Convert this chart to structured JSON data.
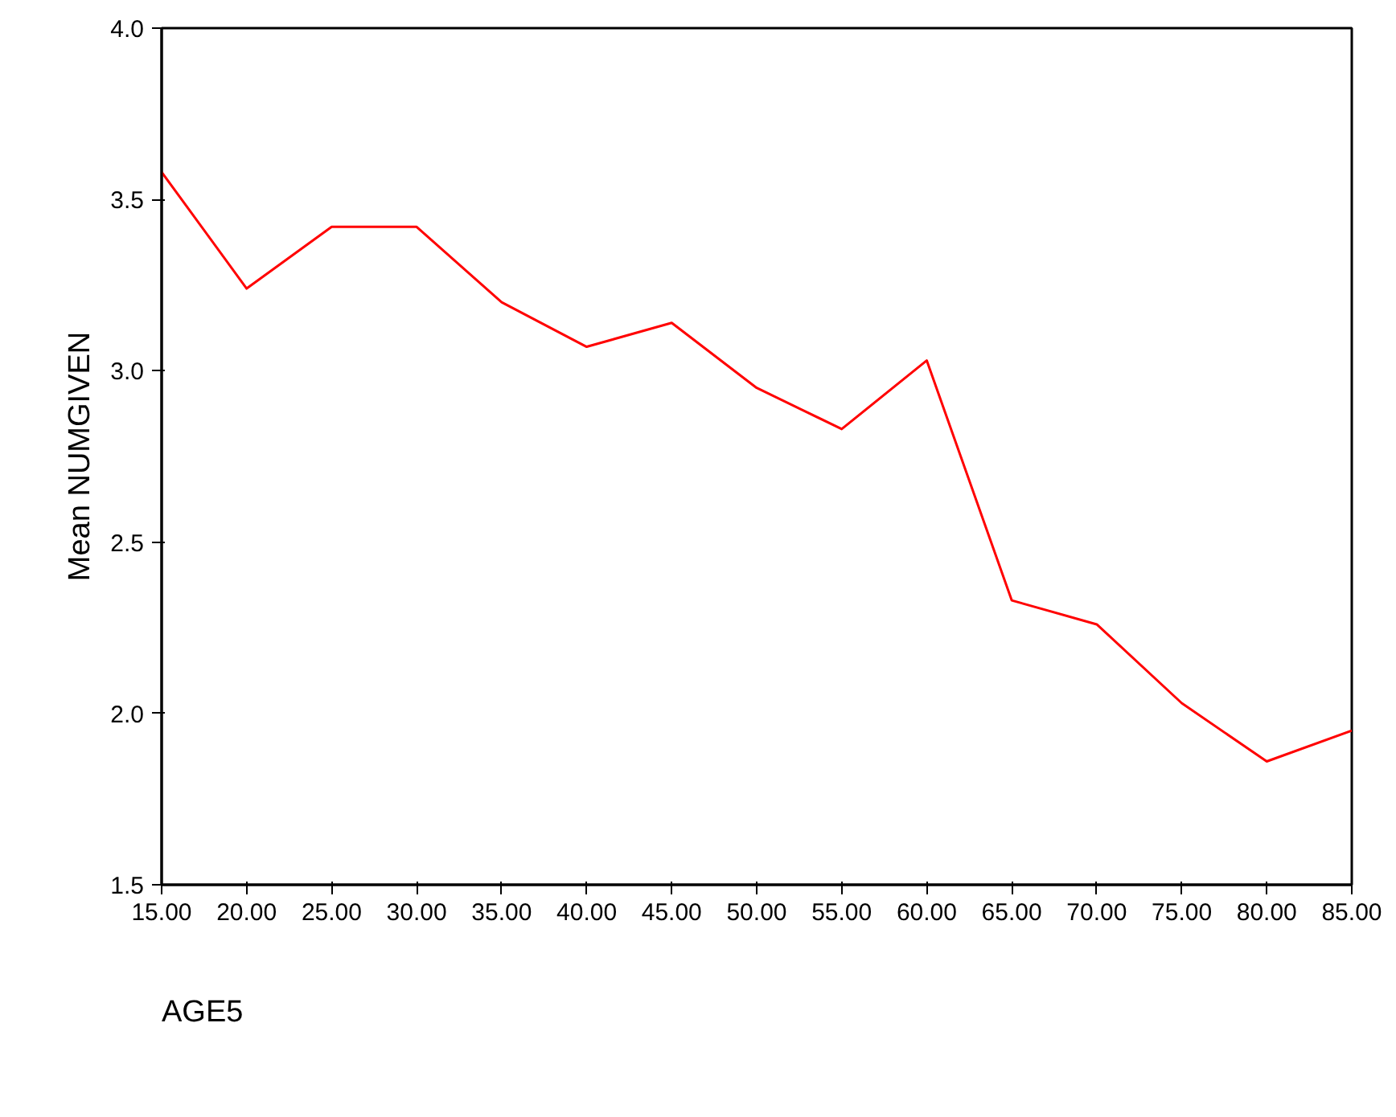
{
  "chart_data": {
    "type": "line",
    "xlabel": "AGE5",
    "ylabel": "Mean NUMGIVEN",
    "x": [
      15,
      20,
      25,
      30,
      35,
      40,
      45,
      50,
      55,
      60,
      65,
      70,
      75,
      80,
      85
    ],
    "series": [
      {
        "color": "#ff0000",
        "values": [
          3.58,
          3.24,
          3.42,
          3.42,
          3.2,
          3.07,
          3.14,
          2.95,
          2.83,
          3.03,
          2.33,
          2.26,
          2.03,
          1.86,
          1.95
        ]
      }
    ],
    "xlim": [
      15,
      85
    ],
    "xticks": [
      {
        "value": 15,
        "label": "15.00"
      },
      {
        "value": 20,
        "label": "20.00"
      },
      {
        "value": 25,
        "label": "25.00"
      },
      {
        "value": 30,
        "label": "30.00"
      },
      {
        "value": 35,
        "label": "35.00"
      },
      {
        "value": 40,
        "label": "40.00"
      },
      {
        "value": 45,
        "label": "45.00"
      },
      {
        "value": 50,
        "label": "50.00"
      },
      {
        "value": 55,
        "label": "55.00"
      },
      {
        "value": 60,
        "label": "60.00"
      },
      {
        "value": 65,
        "label": "65.00"
      },
      {
        "value": 70,
        "label": "70.00"
      },
      {
        "value": 75,
        "label": "75.00"
      },
      {
        "value": 80,
        "label": "80.00"
      },
      {
        "value": 85,
        "label": "85.00"
      }
    ],
    "ylim": [
      1.5,
      4.0
    ],
    "yticks": [
      1.5,
      {
        "value": 2.0,
        "label": "2.0"
      },
      2.5,
      {
        "value": 3.0,
        "label": "3.0"
      },
      3.5,
      {
        "value": 4.0,
        "label": "4.0"
      }
    ],
    "grid": false,
    "line_style": "solid",
    "marker": "none"
  }
}
